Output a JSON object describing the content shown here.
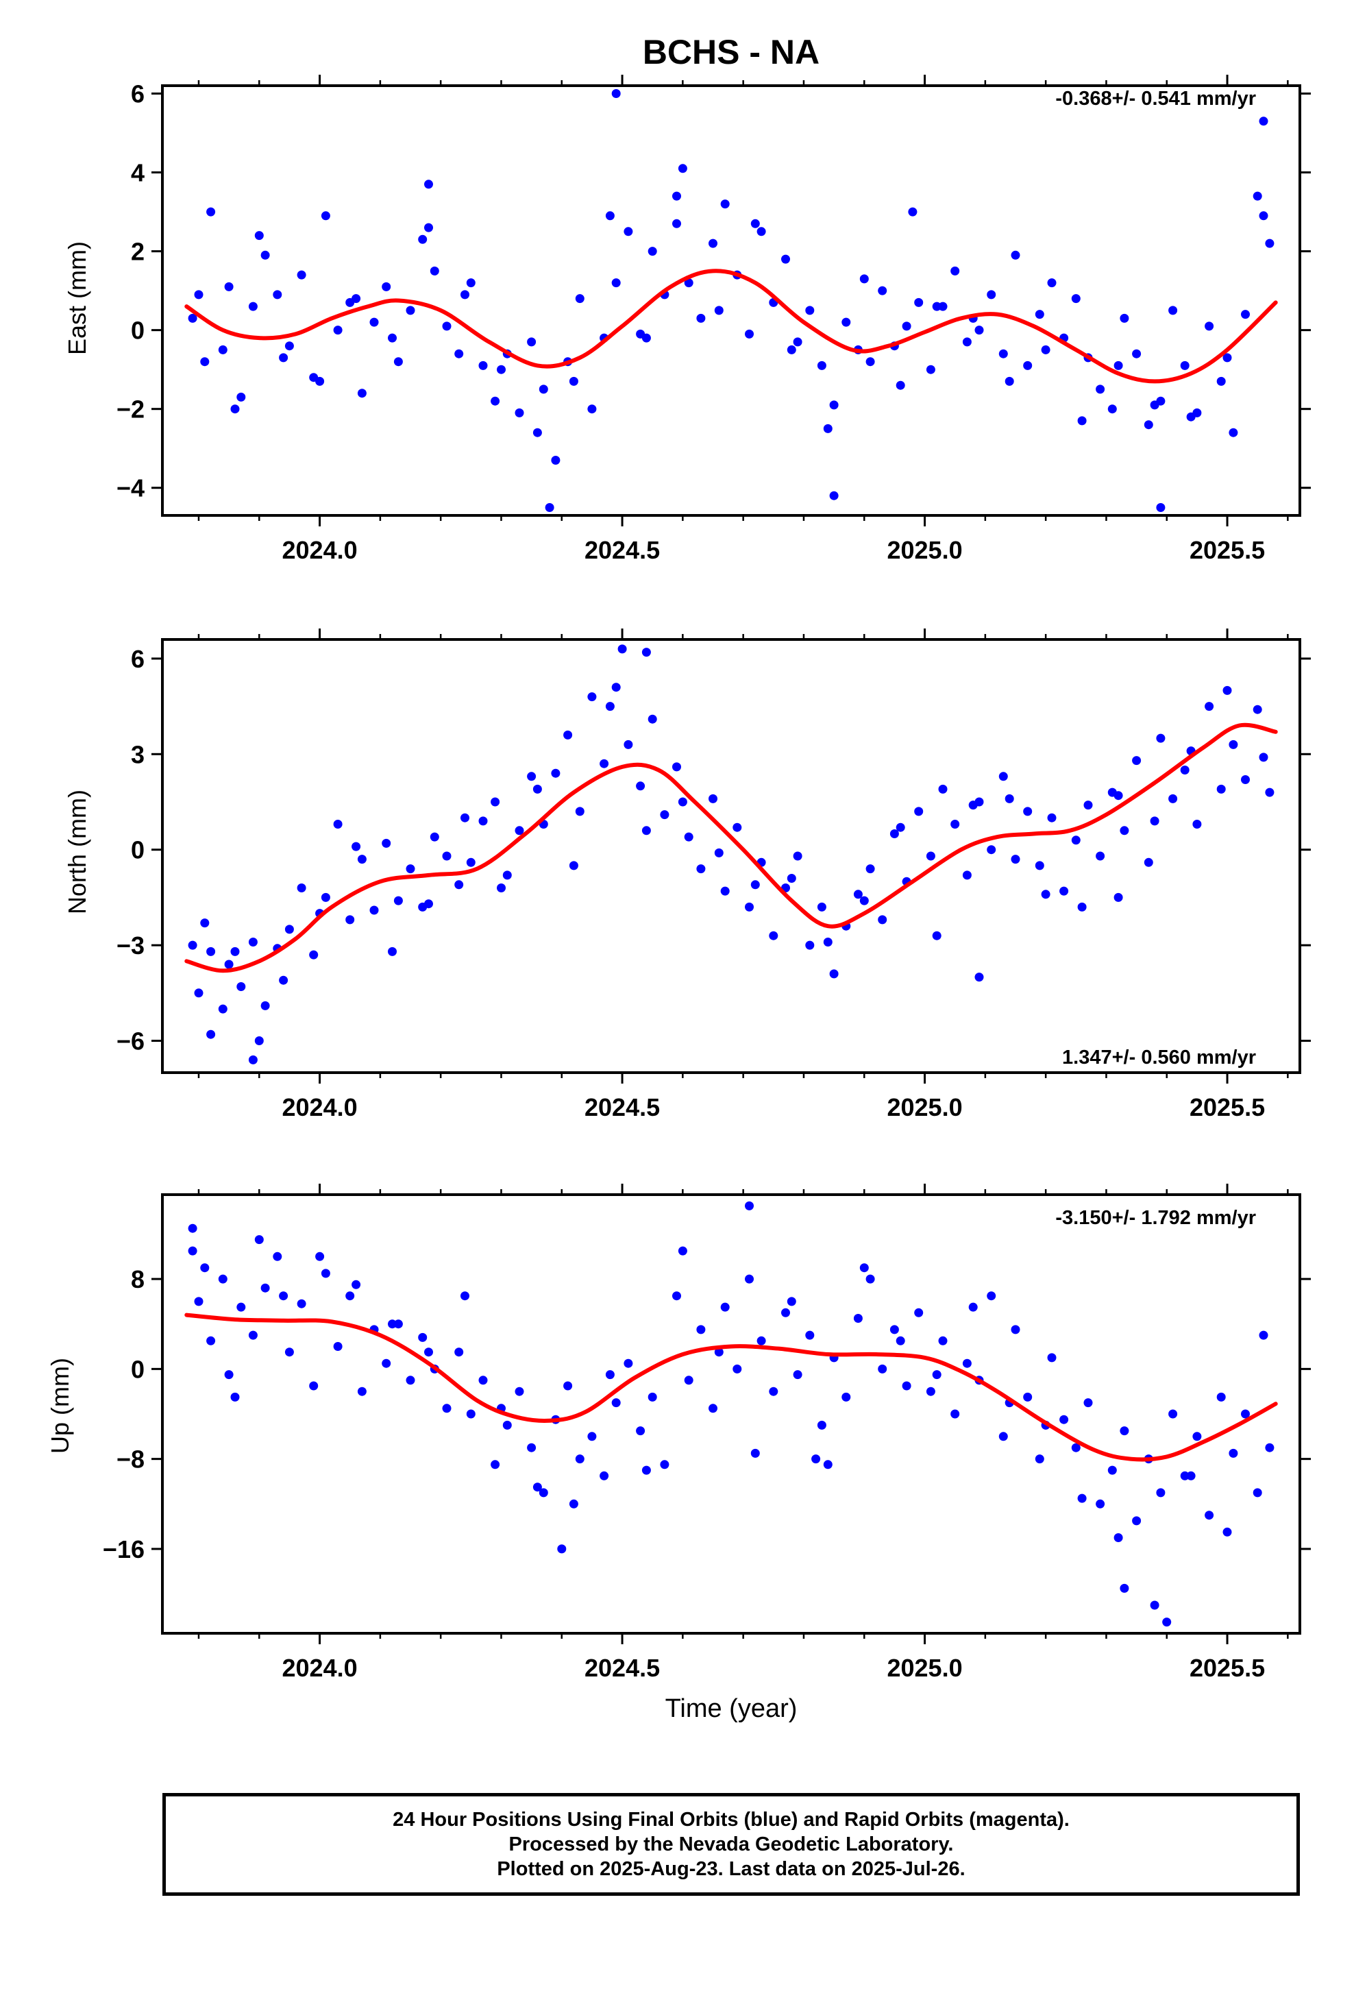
{
  "title": "BCHS - NA",
  "xlabel": "Time (year)",
  "colors": {
    "dots": "#0000ff",
    "fit": "#ff0000",
    "axes": "#000000"
  },
  "footer": {
    "line1": "24 Hour Positions Using Final Orbits (blue) and Rapid Orbits (magenta).",
    "line2": "Processed by the Nevada Geodetic Laboratory.",
    "line3": "Plotted on 2025-Aug-23. Last data on 2025-Jul-26."
  },
  "chart_data": [
    {
      "type": "scatter",
      "ylabel": "East (mm)",
      "rate_label": "-0.368+/- 0.541 mm/yr",
      "rate_position": "top-right",
      "xlim": [
        2023.74,
        2025.62
      ],
      "ylim": [
        -4.7,
        6.2
      ],
      "x_ticks": [
        2024.0,
        2024.5,
        2025.0,
        2025.5
      ],
      "x_tick_labels": [
        "2024.0",
        "2024.5",
        "2025.0",
        "2025.5"
      ],
      "y_ticks": [
        -4,
        -2,
        0,
        2,
        4,
        6
      ],
      "y_tick_labels": [
        "−4",
        "−2",
        "0",
        "2",
        "4",
        "6"
      ],
      "fit": {
        "x": [
          2023.78,
          2023.84,
          2023.9,
          2023.96,
          2024.02,
          2024.08,
          2024.13,
          2024.2,
          2024.28,
          2024.36,
          2024.43,
          2024.5,
          2024.58,
          2024.65,
          2024.72,
          2024.8,
          2024.88,
          2024.94,
          2025.0,
          2025.06,
          2025.12,
          2025.18,
          2025.25,
          2025.32,
          2025.38,
          2025.44,
          2025.5,
          2025.58
        ],
        "y": [
          0.6,
          0.0,
          -0.2,
          -0.1,
          0.3,
          0.6,
          0.75,
          0.5,
          -0.3,
          -0.9,
          -0.7,
          0.1,
          1.1,
          1.5,
          1.2,
          0.2,
          -0.5,
          -0.4,
          -0.05,
          0.3,
          0.4,
          0.1,
          -0.5,
          -1.1,
          -1.3,
          -1.1,
          -0.5,
          0.7
        ]
      },
      "points": {
        "x": [
          2023.79,
          2023.8,
          2023.82,
          2023.84,
          2023.85,
          2023.87,
          2023.89,
          2023.91,
          2023.93,
          2023.95,
          2023.97,
          2023.99,
          2024.01,
          2024.03,
          2024.05,
          2024.07,
          2024.09,
          2024.11,
          2024.13,
          2024.15,
          2024.17,
          2024.19,
          2024.21,
          2024.23,
          2024.25,
          2024.27,
          2024.29,
          2024.31,
          2024.33,
          2024.35,
          2024.37,
          2024.39,
          2024.41,
          2024.43,
          2024.45,
          2024.47,
          2024.49,
          2024.51,
          2024.53,
          2024.55,
          2024.57,
          2024.59,
          2024.61,
          2024.63,
          2024.65,
          2024.67,
          2024.69,
          2024.71,
          2024.73,
          2024.75,
          2024.77,
          2024.79,
          2024.81,
          2024.83,
          2024.85,
          2024.87,
          2024.89,
          2024.91,
          2024.93,
          2024.95,
          2024.97,
          2024.99,
          2025.01,
          2025.03,
          2025.05,
          2025.07,
          2025.09,
          2025.11,
          2025.13,
          2025.15,
          2025.17,
          2025.19,
          2025.21,
          2025.23,
          2025.25,
          2025.27,
          2025.29,
          2025.31,
          2025.33,
          2025.35,
          2025.37,
          2025.39,
          2025.41,
          2025.43,
          2025.45,
          2025.47,
          2025.49,
          2025.51,
          2025.53,
          2025.55,
          2025.57,
          2023.81,
          2023.86,
          2023.9,
          2023.94,
          2024.0,
          2024.06,
          2024.12,
          2024.18,
          2024.24,
          2024.3,
          2024.36,
          2024.42,
          2024.48,
          2024.54,
          2024.6,
          2024.66,
          2024.72,
          2024.78,
          2024.84,
          2024.9,
          2024.96,
          2025.02,
          2025.08,
          2025.14,
          2025.2,
          2025.26,
          2025.32,
          2025.38,
          2025.44,
          2025.5,
          2025.56,
          2024.49,
          2025.56,
          2024.59,
          2024.38,
          2024.85,
          2025.39,
          2024.18,
          2024.98
        ],
        "y": [
          0.3,
          0.9,
          3.0,
          -0.5,
          1.1,
          -1.7,
          0.6,
          1.9,
          0.9,
          -0.4,
          1.4,
          -1.2,
          2.9,
          0.0,
          0.7,
          -1.6,
          0.2,
          1.1,
          -0.8,
          0.5,
          2.3,
          1.5,
          0.1,
          -0.6,
          1.2,
          -0.9,
          -1.8,
          -0.6,
          -2.1,
          -0.3,
          -1.5,
          -3.3,
          -0.8,
          0.8,
          -2.0,
          -0.2,
          1.2,
          2.5,
          -0.1,
          2.0,
          0.9,
          2.7,
          1.2,
          0.3,
          2.2,
          3.2,
          1.4,
          -0.1,
          2.5,
          0.7,
          1.8,
          -0.3,
          0.5,
          -0.9,
          -1.9,
          0.2,
          -0.5,
          -0.8,
          1.0,
          -0.4,
          0.1,
          0.7,
          -1.0,
          0.6,
          1.5,
          -0.3,
          0.0,
          0.9,
          -0.6,
          1.9,
          -0.9,
          0.4,
          1.2,
          -0.2,
          0.8,
          -0.7,
          -1.5,
          -2.0,
          0.3,
          -0.6,
          -2.4,
          -1.8,
          0.5,
          -0.9,
          -2.1,
          0.1,
          -1.3,
          -2.6,
          0.4,
          3.4,
          2.2,
          -0.8,
          -2.0,
          2.4,
          -0.7,
          -1.3,
          0.8,
          -0.2,
          2.6,
          0.9,
          -1.0,
          -2.6,
          -1.3,
          2.9,
          -0.2,
          4.1,
          0.5,
          2.7,
          -0.5,
          -2.5,
          1.3,
          -1.4,
          0.6,
          0.3,
          -1.3,
          -0.5,
          -2.3,
          -0.9,
          -1.9,
          -2.2,
          -0.7,
          2.9,
          6.0,
          5.3,
          3.4,
          -4.5,
          -4.2,
          -4.5,
          3.7,
          3.0
        ]
      }
    },
    {
      "type": "scatter",
      "ylabel": "North (mm)",
      "rate_label": "1.347+/- 0.560 mm/yr",
      "rate_position": "bottom-right",
      "xlim": [
        2023.74,
        2025.62
      ],
      "ylim": [
        -7.0,
        6.6
      ],
      "x_ticks": [
        2024.0,
        2024.5,
        2025.0,
        2025.5
      ],
      "x_tick_labels": [
        "2024.0",
        "2024.5",
        "2025.0",
        "2025.5"
      ],
      "y_ticks": [
        -6,
        -3,
        0,
        3,
        6
      ],
      "y_tick_labels": [
        "−6",
        "−3",
        "0",
        "3",
        "6"
      ],
      "fit": {
        "x": [
          2023.78,
          2023.84,
          2023.9,
          2023.96,
          2024.02,
          2024.1,
          2024.18,
          2024.26,
          2024.34,
          2024.42,
          2024.5,
          2024.56,
          2024.62,
          2024.7,
          2024.78,
          2024.84,
          2024.9,
          2024.98,
          2025.06,
          2025.12,
          2025.18,
          2025.24,
          2025.3,
          2025.38,
          2025.46,
          2025.52,
          2025.58
        ],
        "y": [
          -3.5,
          -3.8,
          -3.5,
          -2.8,
          -1.8,
          -1.0,
          -0.8,
          -0.6,
          0.5,
          1.8,
          2.6,
          2.5,
          1.5,
          0.0,
          -1.6,
          -2.4,
          -2.0,
          -1.0,
          0.0,
          0.4,
          0.5,
          0.6,
          1.1,
          2.1,
          3.2,
          3.9,
          3.7
        ]
      },
      "points": {
        "x": [
          2023.79,
          2023.8,
          2023.82,
          2023.84,
          2023.85,
          2023.87,
          2023.89,
          2023.91,
          2023.93,
          2023.95,
          2023.97,
          2023.99,
          2024.01,
          2024.03,
          2024.05,
          2024.07,
          2024.09,
          2024.11,
          2024.13,
          2024.15,
          2024.17,
          2024.19,
          2024.21,
          2024.23,
          2024.25,
          2024.27,
          2024.29,
          2024.31,
          2024.33,
          2024.35,
          2024.37,
          2024.39,
          2024.41,
          2024.43,
          2024.45,
          2024.47,
          2024.49,
          2024.51,
          2024.53,
          2024.55,
          2024.57,
          2024.59,
          2024.61,
          2024.63,
          2024.65,
          2024.67,
          2024.69,
          2024.71,
          2024.73,
          2024.75,
          2024.77,
          2024.79,
          2024.81,
          2024.83,
          2024.85,
          2024.87,
          2024.89,
          2024.91,
          2024.93,
          2024.95,
          2024.97,
          2024.99,
          2025.01,
          2025.03,
          2025.05,
          2025.07,
          2025.09,
          2025.11,
          2025.13,
          2025.15,
          2025.17,
          2025.19,
          2025.21,
          2025.23,
          2025.25,
          2025.27,
          2025.29,
          2025.31,
          2025.33,
          2025.35,
          2025.37,
          2025.39,
          2025.41,
          2025.43,
          2025.45,
          2025.47,
          2025.49,
          2025.51,
          2025.53,
          2025.55,
          2025.57,
          2023.81,
          2023.86,
          2023.9,
          2023.94,
          2024.0,
          2024.06,
          2024.12,
          2024.18,
          2024.24,
          2024.3,
          2024.36,
          2024.42,
          2024.48,
          2024.54,
          2024.6,
          2024.66,
          2024.72,
          2024.78,
          2024.84,
          2024.9,
          2024.96,
          2025.02,
          2025.08,
          2025.14,
          2025.2,
          2025.26,
          2025.32,
          2025.38,
          2025.44,
          2025.5,
          2025.56,
          2024.5,
          2024.54,
          2023.89,
          2023.82,
          2025.09,
          2025.32
        ],
        "y": [
          -3.0,
          -4.5,
          -3.2,
          -5.0,
          -3.6,
          -4.3,
          -2.9,
          -4.9,
          -3.1,
          -2.5,
          -1.2,
          -3.3,
          -1.5,
          0.8,
          -2.2,
          -0.3,
          -1.9,
          0.2,
          -1.6,
          -0.6,
          -1.8,
          0.4,
          -0.2,
          -1.1,
          -0.4,
          0.9,
          1.5,
          -0.8,
          0.6,
          2.3,
          0.8,
          2.4,
          3.6,
          1.2,
          4.8,
          2.7,
          5.1,
          3.3,
          2.0,
          4.1,
          1.1,
          2.6,
          0.4,
          -0.6,
          1.6,
          -1.3,
          0.7,
          -1.8,
          -0.4,
          -2.7,
          -1.2,
          -0.2,
          -3.0,
          -1.8,
          -3.9,
          -2.4,
          -1.4,
          -0.6,
          -2.2,
          0.5,
          -1.0,
          1.2,
          -0.2,
          1.9,
          0.8,
          -0.8,
          1.5,
          0.0,
          2.3,
          -0.3,
          1.2,
          -0.5,
          1.0,
          -1.3,
          0.3,
          1.4,
          -0.2,
          1.8,
          0.6,
          2.8,
          -0.4,
          3.5,
          1.6,
          2.5,
          0.8,
          4.5,
          1.9,
          3.3,
          2.2,
          4.4,
          1.8,
          -2.3,
          -3.2,
          -6.0,
          -4.1,
          -2.0,
          0.1,
          -3.2,
          -1.7,
          1.0,
          -1.2,
          1.9,
          -0.5,
          4.5,
          0.6,
          1.5,
          -0.1,
          -1.1,
          -0.9,
          -2.9,
          -1.6,
          0.7,
          -2.7,
          1.4,
          1.6,
          -1.4,
          -1.8,
          1.7,
          0.9,
          3.1,
          5.0,
          2.9,
          6.3,
          6.2,
          -6.6,
          -5.8,
          -4.0,
          -1.5
        ]
      }
    },
    {
      "type": "scatter",
      "ylabel": "Up (mm)",
      "rate_label": "-3.150+/- 1.792 mm/yr",
      "rate_position": "top-right",
      "xlim": [
        2023.74,
        2025.62
      ],
      "ylim": [
        -23.5,
        15.5
      ],
      "x_ticks": [
        2024.0,
        2024.5,
        2025.0,
        2025.5
      ],
      "x_tick_labels": [
        "2024.0",
        "2024.5",
        "2025.0",
        "2025.5"
      ],
      "y_ticks": [
        -16,
        -8,
        0,
        8
      ],
      "y_tick_labels": [
        "−16",
        "−8",
        "0",
        "8"
      ],
      "fit": {
        "x": [
          2023.78,
          2023.86,
          2023.94,
          2024.02,
          2024.1,
          2024.18,
          2024.26,
          2024.32,
          2024.38,
          2024.44,
          2024.52,
          2024.6,
          2024.68,
          2024.76,
          2024.84,
          2024.92,
          2025.0,
          2025.06,
          2025.12,
          2025.2,
          2025.28,
          2025.34,
          2025.4,
          2025.46,
          2025.52,
          2025.58
        ],
        "y": [
          4.8,
          4.4,
          4.3,
          4.2,
          3.0,
          0.5,
          -2.8,
          -4.2,
          -4.6,
          -3.8,
          -0.8,
          1.3,
          2.0,
          1.8,
          1.3,
          1.3,
          1.0,
          -0.2,
          -2.0,
          -4.8,
          -7.2,
          -8.0,
          -7.8,
          -6.5,
          -4.9,
          -3.1
        ]
      },
      "points": {
        "x": [
          2023.79,
          2023.8,
          2023.82,
          2023.84,
          2023.85,
          2023.87,
          2023.89,
          2023.91,
          2023.93,
          2023.95,
          2023.97,
          2023.99,
          2024.01,
          2024.03,
          2024.05,
          2024.07,
          2024.09,
          2024.11,
          2024.13,
          2024.15,
          2024.17,
          2024.19,
          2024.21,
          2024.23,
          2024.25,
          2024.27,
          2024.29,
          2024.31,
          2024.33,
          2024.35,
          2024.37,
          2024.39,
          2024.41,
          2024.43,
          2024.45,
          2024.47,
          2024.49,
          2024.51,
          2024.53,
          2024.55,
          2024.57,
          2024.59,
          2024.61,
          2024.63,
          2024.65,
          2024.67,
          2024.69,
          2024.71,
          2024.73,
          2024.75,
          2024.77,
          2024.79,
          2024.81,
          2024.83,
          2024.85,
          2024.87,
          2024.89,
          2024.91,
          2024.93,
          2024.95,
          2024.97,
          2024.99,
          2025.01,
          2025.03,
          2025.05,
          2025.07,
          2025.09,
          2025.11,
          2025.13,
          2025.15,
          2025.17,
          2025.19,
          2025.21,
          2025.23,
          2025.25,
          2025.27,
          2025.29,
          2025.31,
          2025.33,
          2025.35,
          2025.37,
          2025.39,
          2025.41,
          2025.43,
          2025.45,
          2025.47,
          2025.49,
          2025.51,
          2025.53,
          2025.55,
          2025.57,
          2023.81,
          2023.86,
          2023.9,
          2023.94,
          2024.0,
          2024.06,
          2024.12,
          2024.18,
          2024.24,
          2024.3,
          2024.36,
          2024.42,
          2024.48,
          2024.54,
          2024.6,
          2024.66,
          2024.72,
          2024.78,
          2024.84,
          2024.9,
          2024.96,
          2025.02,
          2025.08,
          2025.14,
          2025.2,
          2025.26,
          2025.32,
          2025.38,
          2025.44,
          2025.5,
          2025.56,
          2023.79,
          2024.4,
          2024.82,
          2025.33,
          2025.4,
          2024.71
        ],
        "y": [
          12.5,
          6.0,
          2.5,
          8.0,
          -0.5,
          5.5,
          3.0,
          7.2,
          10.0,
          1.5,
          5.8,
          -1.5,
          8.5,
          2.0,
          6.5,
          -2.0,
          3.5,
          0.5,
          4.0,
          -1.0,
          2.8,
          0.0,
          -3.5,
          1.5,
          -4.0,
          -1.0,
          -8.5,
          -5.0,
          -2.0,
          -7.0,
          -11.0,
          -4.5,
          -1.5,
          -8.0,
          -6.0,
          -9.5,
          -3.0,
          0.5,
          -5.5,
          -2.5,
          -8.5,
          6.5,
          -1.0,
          3.5,
          -3.5,
          5.5,
          0.0,
          8.0,
          2.5,
          -2.0,
          5.0,
          -0.5,
          3.0,
          -5.0,
          1.0,
          -2.5,
          4.5,
          8.0,
          0.0,
          3.5,
          -1.5,
          5.0,
          -2.0,
          2.5,
          -4.0,
          0.5,
          -1.0,
          6.5,
          -6.0,
          3.5,
          -2.5,
          -8.0,
          1.0,
          -4.5,
          -7.0,
          -3.0,
          -12.0,
          -9.0,
          -5.5,
          -13.5,
          -8.0,
          -11.0,
          -4.0,
          -9.5,
          -6.0,
          -13.0,
          -2.5,
          -7.5,
          -4.0,
          -11.0,
          -7.0,
          9.0,
          -2.5,
          11.5,
          6.5,
          10.0,
          7.5,
          4.0,
          1.5,
          6.5,
          -3.5,
          -10.5,
          -12.0,
          -0.5,
          -9.0,
          10.5,
          1.5,
          -7.5,
          6.0,
          -8.5,
          9.0,
          2.5,
          -0.5,
          5.5,
          -3.0,
          -5.0,
          -11.5,
          -15.0,
          -21.0,
          -9.5,
          -14.5,
          3.0,
          10.5,
          -16.0,
          -8.0,
          -19.5,
          -22.5,
          14.5
        ]
      }
    }
  ]
}
